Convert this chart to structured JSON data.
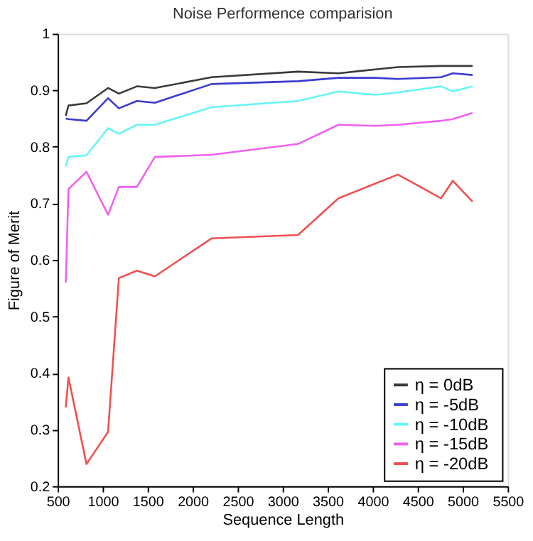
{
  "chart_data": {
    "type": "line",
    "title": "Noise Performence comparision",
    "xlabel": "Sequence Length",
    "ylabel": "Figure of Merit",
    "x": [
      590,
      620,
      820,
      1060,
      1180,
      1380,
      1580,
      2210,
      3170,
      3620,
      4030,
      4280,
      4760,
      4890,
      5110
    ],
    "series": [
      {
        "name": "η  = 0dB",
        "color": "#3a3a3a",
        "values": [
          0.855,
          0.873,
          0.877,
          0.904,
          0.894,
          0.907,
          0.904,
          0.923,
          0.933,
          0.93,
          0.937,
          0.941,
          0.943,
          0.943,
          0.943
        ]
      },
      {
        "name": "η  = -5dB",
        "color": "#3b3bd0",
        "values": [
          0.85,
          0.849,
          0.846,
          0.886,
          0.868,
          0.881,
          0.878,
          0.911,
          0.916,
          0.922,
          0.922,
          0.92,
          0.923,
          0.93,
          0.927
        ]
      },
      {
        "name": "η  = -10dB",
        "color": "#66f5f5",
        "values": [
          0.766,
          0.782,
          0.785,
          0.833,
          0.823,
          0.839,
          0.839,
          0.87,
          0.881,
          0.898,
          0.892,
          0.896,
          0.907,
          0.898,
          0.907
        ]
      },
      {
        "name": "η  = -15dB",
        "color": "#f060f0",
        "values": [
          0.56,
          0.725,
          0.756,
          0.68,
          0.729,
          0.729,
          0.782,
          0.786,
          0.805,
          0.839,
          0.837,
          0.839,
          0.846,
          0.849,
          0.86
        ]
      },
      {
        "name": "η  = -20dB",
        "color": "#f05050",
        "values": [
          0.339,
          0.392,
          0.239,
          0.296,
          0.568,
          0.581,
          0.571,
          0.638,
          0.644,
          0.709,
          0.735,
          0.751,
          0.709,
          0.74,
          0.703
        ]
      }
    ],
    "xlim": [
      500,
      5500
    ],
    "xticks": [
      500,
      1000,
      1500,
      2000,
      2500,
      3000,
      3500,
      4000,
      4500,
      5000,
      5500
    ],
    "ylim": [
      0.2,
      1
    ],
    "yticks": [
      0.2,
      0.3,
      0.4,
      0.5,
      0.6,
      0.7,
      0.8,
      0.9,
      1
    ],
    "grid": false,
    "legend": "bottom right",
    "marker": "none",
    "line_style": "solid"
  }
}
